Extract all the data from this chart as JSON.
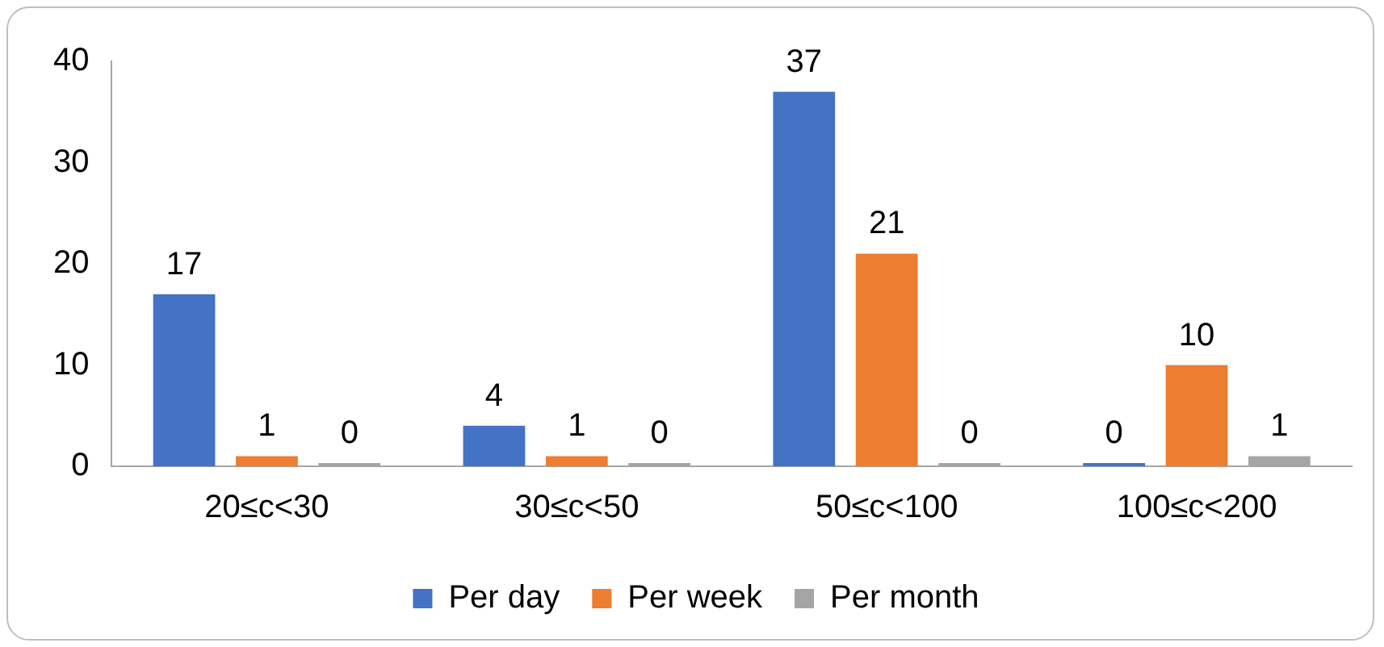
{
  "chart_data": {
    "type": "bar",
    "categories": [
      "20≤c<30",
      "30≤c<50",
      "50≤c<100",
      "100≤c<200"
    ],
    "series": [
      {
        "name": "Per day",
        "color": "#4472c4",
        "values": [
          17,
          4,
          37,
          0
        ]
      },
      {
        "name": "Per week",
        "color": "#ed7d31",
        "values": [
          1,
          1,
          21,
          10
        ]
      },
      {
        "name": "Per month",
        "color": "#a5a5a5",
        "values": [
          0,
          0,
          0,
          1
        ]
      }
    ],
    "ylim": [
      0,
      40
    ],
    "yticks": [
      0,
      10,
      20,
      30,
      40
    ],
    "grid": false,
    "legend": "bottom",
    "data_labels": true
  }
}
